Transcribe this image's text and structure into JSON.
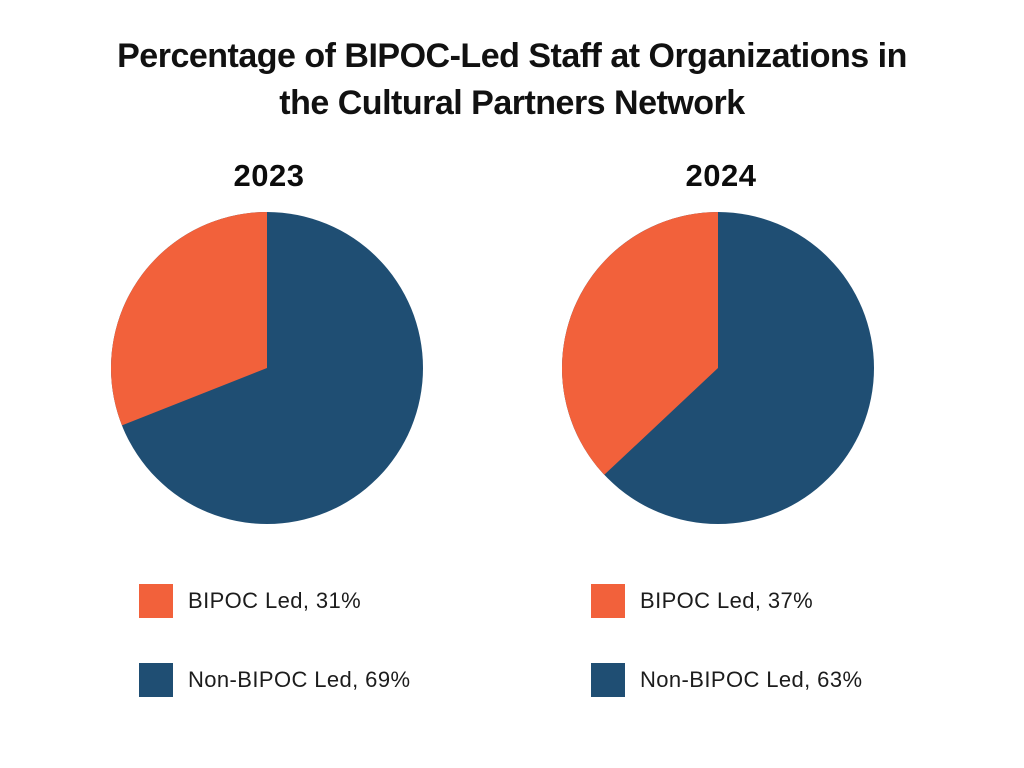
{
  "title": {
    "line1": "Percentage of BIPOC-Led Staff at Organizations in",
    "line2": "the Cultural Partners Network"
  },
  "colors": {
    "bipoc_orange": "#F2613B",
    "non_bipoc_blue": "#1F4E73",
    "title_text": "#111111",
    "legend_text": "#1C1C1C",
    "background": "#FFFFFF"
  },
  "chart_data": [
    {
      "type": "pie",
      "title": "2023",
      "start_angle": "12 o'clock",
      "first_slice_direction": "counterclockwise",
      "slices": [
        {
          "label": "BIPOC Led",
          "value": 31,
          "color": "#F2613B",
          "legend_label": "BIPOC Led, 31%"
        },
        {
          "label": "Non-BIPOC Led",
          "value": 69,
          "color": "#1F4E73",
          "legend_label": "Non-BIPOC Led, 69%"
        }
      ],
      "legend_position": "below"
    },
    {
      "type": "pie",
      "title": "2024",
      "start_angle": "12 o'clock",
      "first_slice_direction": "counterclockwise",
      "slices": [
        {
          "label": "BIPOC Led",
          "value": 37,
          "color": "#F2613B",
          "legend_label": "BIPOC Led, 37%"
        },
        {
          "label": "Non-BIPOC Led",
          "value": 63,
          "color": "#1F4E73",
          "legend_label": "Non-BIPOC Led, 63%"
        }
      ],
      "legend_position": "below"
    }
  ]
}
